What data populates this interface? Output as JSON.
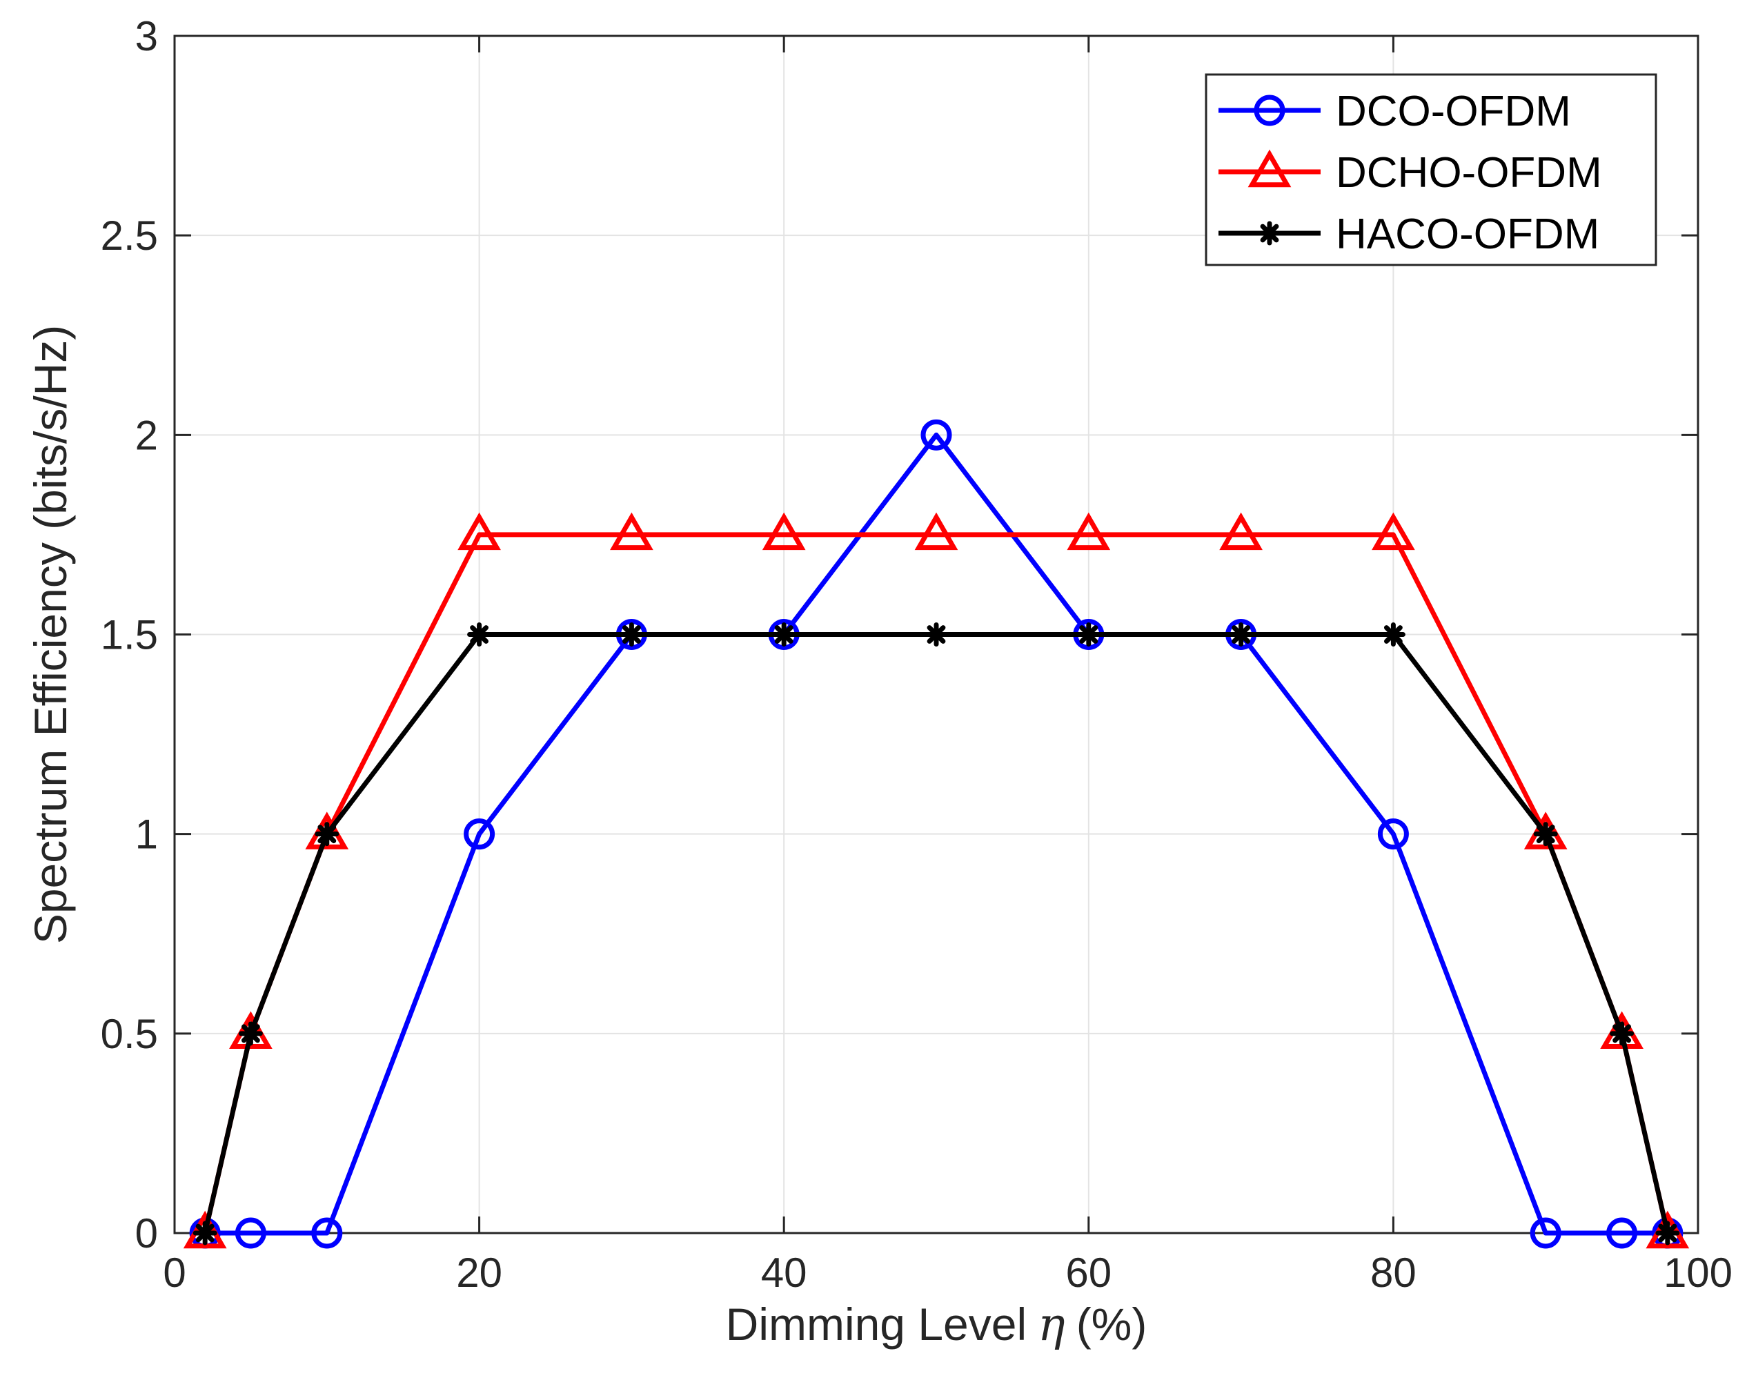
{
  "chart_data": {
    "type": "line",
    "title": "",
    "xlabel": "Dimming Level",
    "xlabel_symbol": "η",
    "xlabel_unit": "(%)",
    "ylabel": "Spectrum Efficiency (bits/s/Hz)",
    "xlim": [
      0,
      100
    ],
    "ylim": [
      0,
      3
    ],
    "xticks": [
      0,
      20,
      40,
      60,
      80,
      100
    ],
    "yticks": [
      0,
      0.5,
      1,
      1.5,
      2,
      2.5,
      3
    ],
    "xtick_labels": [
      "0",
      "20",
      "40",
      "60",
      "80",
      "100"
    ],
    "ytick_labels": [
      "0",
      "0.5",
      "1",
      "1.5",
      "2",
      "2.5",
      "3"
    ],
    "grid": true,
    "legend_position": "top-right",
    "x": [
      2,
      5,
      10,
      20,
      30,
      40,
      50,
      60,
      70,
      80,
      90,
      95,
      98
    ],
    "series": [
      {
        "name": "DCO-OFDM",
        "color": "#0000ff",
        "marker": "circle",
        "values": [
          0,
          0,
          0,
          1,
          1.5,
          1.5,
          2,
          1.5,
          1.5,
          1,
          0,
          0,
          0
        ]
      },
      {
        "name": "DCHO-OFDM",
        "color": "#ff0000",
        "marker": "triangle",
        "values": [
          0,
          0.5,
          1,
          1.75,
          1.75,
          1.75,
          1.75,
          1.75,
          1.75,
          1.75,
          1,
          0.5,
          0
        ]
      },
      {
        "name": "HACO-OFDM",
        "color": "#000000",
        "marker": "asterisk",
        "values": [
          0,
          0.5,
          1,
          1.5,
          1.5,
          1.5,
          1.5,
          1.5,
          1.5,
          1.5,
          1,
          0.5,
          0
        ]
      }
    ]
  }
}
